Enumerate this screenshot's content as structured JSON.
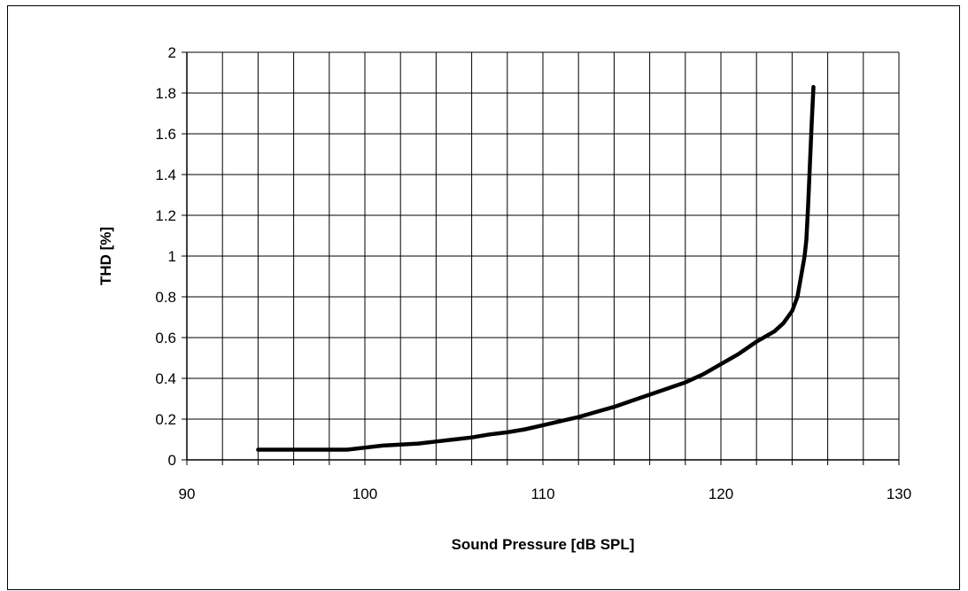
{
  "chart_data": {
    "type": "line",
    "title": "",
    "xlabel": "Sound Pressure  [dB  SPL]",
    "ylabel": "THD [%]",
    "xlim": [
      90,
      130
    ],
    "ylim": [
      0,
      2
    ],
    "x_ticks": [
      90,
      100,
      110,
      120,
      130
    ],
    "x_tick_labels": [
      "90",
      "100",
      "110",
      "120",
      "130"
    ],
    "x_minor_step": 2,
    "y_ticks": [
      0,
      0.2,
      0.4,
      0.6,
      0.8,
      1,
      1.2,
      1.4,
      1.6,
      1.8,
      2
    ],
    "y_tick_labels": [
      "0",
      "0.2",
      "0.4",
      "0.6",
      "0.8",
      "1",
      "1.2",
      "1.4",
      "1.6",
      "1.8",
      "2"
    ],
    "grid": true,
    "legend": "none",
    "colors": {
      "line": "#000000",
      "grid": "#000000",
      "background": "#ffffff"
    },
    "series": [
      {
        "x": [
          94,
          96,
          98,
          99,
          100,
          101,
          102,
          103,
          104,
          105,
          106,
          107,
          108,
          109,
          110,
          111,
          112,
          113,
          114,
          115,
          116,
          117,
          118,
          119,
          120,
          121,
          122,
          123,
          123.5,
          124,
          124.3,
          124.5,
          124.7,
          124.8,
          124.9,
          125,
          125.1,
          125.2
        ],
        "y": [
          0.05,
          0.05,
          0.05,
          0.05,
          0.06,
          0.07,
          0.075,
          0.08,
          0.09,
          0.1,
          0.11,
          0.125,
          0.135,
          0.15,
          0.17,
          0.19,
          0.21,
          0.235,
          0.26,
          0.29,
          0.32,
          0.35,
          0.38,
          0.42,
          0.47,
          0.52,
          0.58,
          0.63,
          0.67,
          0.73,
          0.8,
          0.9,
          1.0,
          1.08,
          1.25,
          1.45,
          1.65,
          1.83
        ]
      }
    ]
  }
}
